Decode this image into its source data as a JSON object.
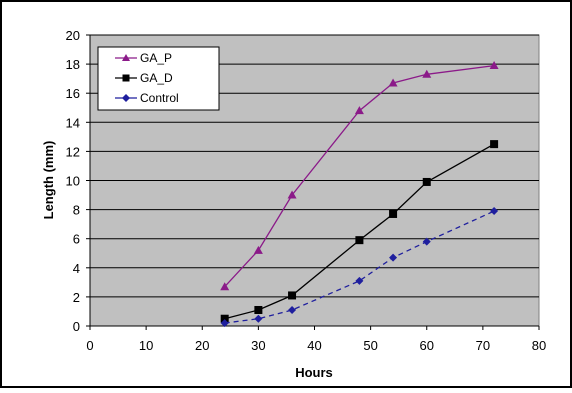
{
  "chart_data": {
    "type": "line",
    "title": "",
    "xlabel": "Hours",
    "ylabel": "Length (mm)",
    "xlim": [
      0,
      80
    ],
    "ylim": [
      0,
      20
    ],
    "xticks": [
      0,
      10,
      20,
      30,
      40,
      50,
      60,
      70,
      80
    ],
    "yticks": [
      0,
      2,
      4,
      6,
      8,
      10,
      12,
      14,
      16,
      18,
      20
    ],
    "grid": "horizontal",
    "legend_position": "top-left",
    "plot_background": "#c0c0c0",
    "series": [
      {
        "name": "GA_P",
        "color": "#8b1a89",
        "marker": "triangle",
        "line_style": "solid",
        "x": [
          24,
          30,
          36,
          48,
          54,
          60,
          72
        ],
        "y": [
          2.7,
          5.2,
          9.0,
          14.8,
          16.7,
          17.3,
          17.9
        ]
      },
      {
        "name": "GA_D",
        "color": "#000000",
        "marker": "square",
        "line_style": "solid",
        "x": [
          24,
          30,
          36,
          48,
          54,
          60,
          72
        ],
        "y": [
          0.5,
          1.1,
          2.1,
          5.9,
          7.7,
          9.9,
          12.5
        ]
      },
      {
        "name": "Control",
        "color": "#1f1f9e",
        "marker": "diamond",
        "line_style": "dashed",
        "x": [
          24,
          30,
          36,
          48,
          54,
          60,
          72
        ],
        "y": [
          0.2,
          0.5,
          1.1,
          3.1,
          4.7,
          5.8,
          7.9
        ]
      }
    ]
  }
}
